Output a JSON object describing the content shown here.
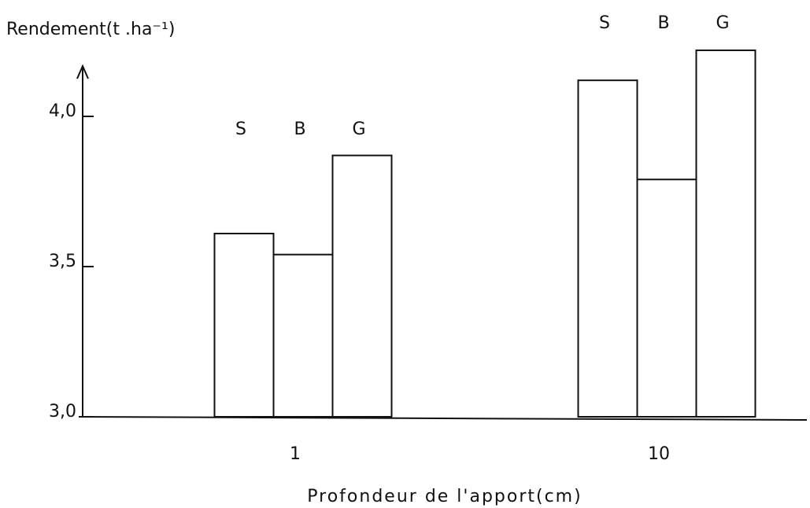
{
  "chart_data": {
    "type": "bar",
    "ylabel": "Rendement(t .ha⁻¹)",
    "xlabel": "Profondeur de l'apport(cm)",
    "categories": [
      "1",
      "10"
    ],
    "series": [
      {
        "name": "S",
        "color": "#ffffff",
        "values": [
          3.61,
          4.12
        ]
      },
      {
        "name": "B",
        "color": "#ffffff",
        "values": [
          3.54,
          3.79
        ]
      },
      {
        "name": "G",
        "color": "#ffffff",
        "values": [
          3.87,
          4.22
        ]
      }
    ],
    "ylim": [
      3.0,
      4.25
    ],
    "yticks": [
      {
        "value": 3.0,
        "label": "3,0"
      },
      {
        "value": 3.5,
        "label": "3,5"
      },
      {
        "value": 4.0,
        "label": "4,0"
      }
    ],
    "grid": false
  }
}
